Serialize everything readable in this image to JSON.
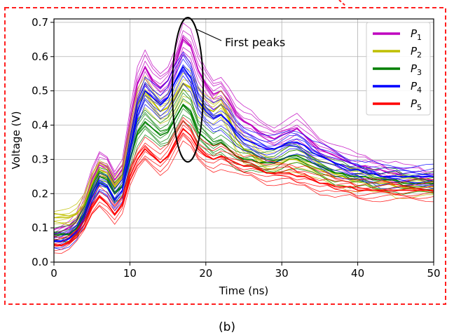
{
  "chart_data": {
    "type": "line",
    "xlabel": "Time (ns)",
    "ylabel": "Voltage (V)",
    "xlim": [
      0,
      50
    ],
    "ylim": [
      0,
      0.71
    ],
    "xticks": [
      "0",
      "10",
      "20",
      "30",
      "40",
      "50"
    ],
    "yticks": [
      "0.0",
      "0.1",
      "0.2",
      "0.3",
      "0.4",
      "0.5",
      "0.6",
      "0.7"
    ],
    "grid": true,
    "legend_position": "top-right",
    "annotation": "First peaks",
    "caption": "(b)",
    "x": [
      0,
      1,
      2,
      3,
      4,
      5,
      6,
      7,
      8,
      9,
      10,
      11,
      12,
      13,
      14,
      15,
      16,
      17,
      18,
      19,
      20,
      21,
      22,
      23,
      24,
      25,
      26,
      27,
      28,
      29,
      30,
      31,
      32,
      33,
      34,
      35,
      36,
      37,
      38,
      39,
      40,
      41,
      42,
      43,
      44,
      45,
      46,
      47,
      48,
      49,
      50
    ],
    "series": [
      {
        "name": "P",
        "sub": "1",
        "color": "#bf00bf",
        "values": [
          0.08,
          0.09,
          0.1,
          0.12,
          0.17,
          0.24,
          0.29,
          0.28,
          0.24,
          0.27,
          0.4,
          0.52,
          0.57,
          0.53,
          0.51,
          0.53,
          0.58,
          0.65,
          0.63,
          0.56,
          0.52,
          0.49,
          0.5,
          0.47,
          0.43,
          0.41,
          0.4,
          0.38,
          0.37,
          0.36,
          0.37,
          0.38,
          0.39,
          0.37,
          0.35,
          0.33,
          0.32,
          0.31,
          0.3,
          0.29,
          0.28,
          0.28,
          0.27,
          0.27,
          0.26,
          0.26,
          0.25,
          0.25,
          0.25,
          0.24,
          0.24
        ]
      },
      {
        "name": "P",
        "sub": "2",
        "color": "#bfbf00",
        "values": [
          0.13,
          0.13,
          0.13,
          0.14,
          0.17,
          0.23,
          0.27,
          0.26,
          0.22,
          0.25,
          0.36,
          0.46,
          0.5,
          0.47,
          0.44,
          0.45,
          0.48,
          0.52,
          0.51,
          0.47,
          0.45,
          0.44,
          0.46,
          0.42,
          0.36,
          0.33,
          0.32,
          0.3,
          0.29,
          0.29,
          0.29,
          0.3,
          0.3,
          0.29,
          0.28,
          0.27,
          0.26,
          0.25,
          0.25,
          0.24,
          0.24,
          0.24,
          0.23,
          0.23,
          0.23,
          0.22,
          0.22,
          0.22,
          0.22,
          0.22,
          0.22
        ]
      },
      {
        "name": "P",
        "sub": "3",
        "color": "#007f00",
        "values": [
          0.08,
          0.08,
          0.08,
          0.1,
          0.14,
          0.2,
          0.25,
          0.24,
          0.2,
          0.22,
          0.3,
          0.38,
          0.41,
          0.39,
          0.37,
          0.38,
          0.42,
          0.46,
          0.44,
          0.38,
          0.36,
          0.34,
          0.35,
          0.33,
          0.31,
          0.3,
          0.3,
          0.29,
          0.29,
          0.29,
          0.3,
          0.31,
          0.31,
          0.3,
          0.29,
          0.28,
          0.27,
          0.26,
          0.26,
          0.25,
          0.25,
          0.25,
          0.24,
          0.24,
          0.24,
          0.24,
          0.23,
          0.23,
          0.23,
          0.23,
          0.23
        ]
      },
      {
        "name": "P",
        "sub": "4",
        "color": "#0000ff",
        "values": [
          0.06,
          0.06,
          0.07,
          0.09,
          0.13,
          0.19,
          0.23,
          0.22,
          0.18,
          0.21,
          0.33,
          0.44,
          0.5,
          0.48,
          0.46,
          0.48,
          0.53,
          0.57,
          0.54,
          0.47,
          0.44,
          0.42,
          0.43,
          0.41,
          0.38,
          0.36,
          0.35,
          0.34,
          0.33,
          0.33,
          0.34,
          0.35,
          0.35,
          0.34,
          0.32,
          0.31,
          0.3,
          0.29,
          0.28,
          0.27,
          0.27,
          0.26,
          0.26,
          0.25,
          0.25,
          0.25,
          0.25,
          0.25,
          0.25,
          0.25,
          0.25
        ]
      },
      {
        "name": "P",
        "sub": "5",
        "color": "#ff0000",
        "values": [
          0.05,
          0.05,
          0.06,
          0.08,
          0.11,
          0.16,
          0.19,
          0.17,
          0.14,
          0.17,
          0.25,
          0.3,
          0.33,
          0.31,
          0.29,
          0.31,
          0.35,
          0.39,
          0.37,
          0.33,
          0.31,
          0.3,
          0.31,
          0.3,
          0.29,
          0.28,
          0.28,
          0.27,
          0.26,
          0.26,
          0.26,
          0.26,
          0.25,
          0.25,
          0.24,
          0.23,
          0.23,
          0.22,
          0.22,
          0.22,
          0.21,
          0.21,
          0.21,
          0.21,
          0.21,
          0.21,
          0.21,
          0.21,
          0.21,
          0.21,
          0.21
        ]
      }
    ]
  }
}
